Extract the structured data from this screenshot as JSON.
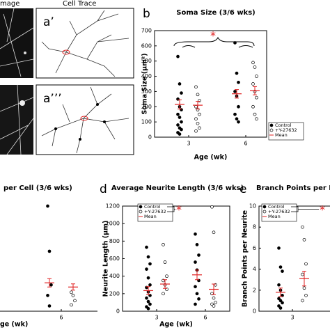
{
  "figure": {
    "image_label": "mage",
    "trace_label": "Cell Trace",
    "panel_a1": "a’",
    "panel_a3": "a’’’",
    "panel_b": "b",
    "panel_d": "d",
    "panel_e": "e"
  },
  "chart_data": [
    {
      "type": "scatter",
      "title": "Soma Size (3/6 wks)",
      "y_label": "Soma Size (μm²)",
      "x_label": "Age (wk)",
      "categories": [
        "3",
        "6"
      ],
      "ylim": [
        0,
        700
      ],
      "yticks": [
        0,
        100,
        200,
        300,
        400,
        500,
        600,
        700
      ],
      "mean_label": "Mean",
      "mean_color": "#e02020",
      "annotation": "*",
      "series": [
        {
          "name": "Control",
          "color": "#000000",
          "filled": true,
          "values": [
            [
              530,
              350,
              290,
              250,
              200,
              180,
              150,
              130,
              100,
              80,
              60,
              50,
              30,
              20
            ],
            [
              620,
              420,
              360,
              300,
              270,
              200,
              150,
              120,
              100
            ]
          ],
          "means": [
            215,
            285
          ],
          "errors": [
            30,
            28
          ]
        },
        {
          "name": "+Y-27632",
          "color": "#000000",
          "filled": false,
          "values": [
            [
              330,
              280,
              240,
              200,
              180,
              150,
              120,
              90,
              60,
              40
            ],
            [
              490,
              460,
              400,
              350,
              300,
              260,
              200,
              150,
              120
            ]
          ],
          "means": [
            210,
            305
          ],
          "errors": [
            25,
            27
          ]
        }
      ]
    },
    {
      "type": "scatter",
      "title": "Average Neurite Length (3/6 wks)",
      "y_label": "Neurite Length (μm)",
      "x_label": "Age (wk)",
      "categories": [
        "3",
        "6"
      ],
      "ylim": [
        0,
        1200
      ],
      "yticks": [
        0,
        200,
        400,
        600,
        800,
        1000,
        1200
      ],
      "mean_label": "Mean",
      "mean_color": "#e02020",
      "annotation": "*",
      "series": [
        {
          "name": "Control",
          "color": "#000000",
          "filled": true,
          "values": [
            [
              730,
              620,
              540,
              480,
              380,
              300,
              270,
              220,
              180,
              150,
              110,
              80,
              50,
              30
            ],
            [
              880,
              760,
              640,
              560,
              470,
              350,
              280,
              200,
              140,
              80
            ]
          ],
          "means": [
            235,
            415
          ],
          "errors": [
            45,
            55
          ]
        },
        {
          "name": "+Y-27632",
          "color": "#000000",
          "filled": false,
          "values": [
            [
              760,
              560,
              400,
              350,
              300,
              250,
              200
            ],
            [
              1190,
              900,
              300,
              200,
              150,
              100,
              80,
              60
            ]
          ],
          "means": [
            310,
            250
          ],
          "errors": [
            50,
            60
          ]
        }
      ]
    },
    {
      "type": "scatter",
      "title": "Branch Points per N",
      "y_label": "Branch Points per Neurite",
      "categories": [
        "3"
      ],
      "ylim": [
        0,
        10
      ],
      "yticks": [
        0,
        2,
        4,
        6,
        8,
        10
      ],
      "mean_label": "Mean",
      "mean_color": "#e02020",
      "annotation": "*",
      "series": [
        {
          "name": "Control",
          "color": "#000000",
          "filled": true,
          "values": [
            [
              6,
              4.2,
              3.8,
              2.5,
              2,
              1.5,
              1.2,
              1,
              0.8,
              0.5,
              0.3
            ]
          ],
          "means": [
            1.8
          ],
          "errors": [
            0.4
          ]
        },
        {
          "name": "+Y-27632",
          "color": "#000000",
          "filled": false,
          "values": [
            [
              8,
              6.8,
              4.5,
              3.5,
              2.2,
              1.5,
              1
            ]
          ],
          "means": [
            3.1
          ],
          "errors": [
            0.7
          ]
        }
      ]
    },
    {
      "type": "scatter",
      "title": "per Cell (3/6 wks)",
      "x_label": "ge (wk)",
      "categories": [
        "6"
      ],
      "ylim": [
        0,
        100
      ],
      "mean_color": "#e02020",
      "series": [
        {
          "color": "#000000",
          "filled": true,
          "values": [
            [
              100,
              57,
              25,
              15,
              5
            ]
          ],
          "means": [
            27
          ],
          "errors": [
            4
          ]
        },
        {
          "color": "#000000",
          "filled": false,
          "values": [
            [
              18,
              15,
              10,
              6
            ]
          ],
          "means": [
            23
          ],
          "errors": [
            3
          ]
        }
      ]
    }
  ]
}
